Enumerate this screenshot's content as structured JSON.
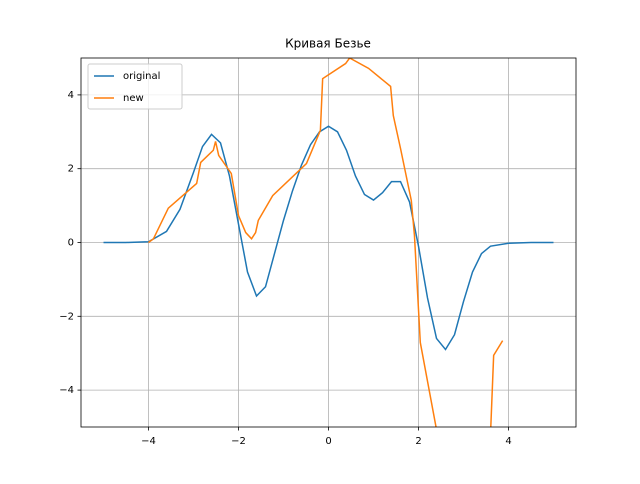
{
  "chart_data": {
    "type": "line",
    "title": "Кривая Безье",
    "series": [
      {
        "name": "original",
        "color": "#1f77b4",
        "x": [
          -5,
          -4.5,
          -4,
          -3.6,
          -3.3,
          -3,
          -2.8,
          -2.6,
          -2.4,
          -2.2,
          -2,
          -1.8,
          -1.6,
          -1.4,
          -1.2,
          -1,
          -0.8,
          -0.6,
          -0.4,
          -0.2,
          0,
          0.2,
          0.4,
          0.6,
          0.8,
          1,
          1.2,
          1.4,
          1.6,
          1.8,
          2,
          2.2,
          2.4,
          2.6,
          2.8,
          3,
          3.2,
          3.4,
          3.6,
          4,
          4.5,
          5
        ],
        "values": [
          0,
          0,
          0.02,
          0.3,
          0.9,
          1.9,
          2.6,
          2.93,
          2.7,
          1.8,
          0.5,
          -0.8,
          -1.45,
          -1.2,
          -0.3,
          0.6,
          1.4,
          2.1,
          2.65,
          3,
          3.15,
          3,
          2.5,
          1.8,
          1.3,
          1.15,
          1.35,
          1.65,
          1.65,
          1.1,
          -0.1,
          -1.5,
          -2.6,
          -2.9,
          -2.5,
          -1.6,
          -0.8,
          -0.3,
          -0.1,
          -0.02,
          0,
          0
        ]
      },
      {
        "name": "new",
        "color": "#ff7f0e",
        "x": [
          -4,
          -3.89,
          -3.56,
          -2.93,
          -2.84,
          -2.56,
          -2.51,
          -2.44,
          -2.16,
          -2,
          -1.84,
          -1.71,
          -1.62,
          -1.56,
          -1.24,
          -0.49,
          -0.18,
          -0.13,
          0.38,
          0.47,
          0.89,
          1.38,
          1.44,
          1.6,
          1.84,
          1.91,
          2.04,
          2.42,
          null,
          3.6,
          3.67,
          3.87
        ],
        "values": [
          0,
          0.1,
          0.93,
          1.6,
          2.17,
          2.5,
          2.74,
          2.36,
          1.87,
          0.73,
          0.27,
          0.1,
          0.27,
          0.6,
          1.27,
          2.14,
          3.04,
          4.44,
          4.85,
          5,
          4.72,
          4.23,
          3.44,
          2.55,
          1.14,
          0.19,
          -2.71,
          -5.2,
          null,
          -5.2,
          -3.06,
          -2.66
        ]
      }
    ],
    "xlim": [
      -5.5,
      5.5
    ],
    "ylim": [
      -5,
      5
    ],
    "xticks": [
      {
        "value": -4,
        "label": "−4"
      },
      {
        "value": -2,
        "label": "−2"
      },
      0,
      2,
      4
    ],
    "yticks": [
      {
        "value": -4,
        "label": "−4"
      },
      {
        "value": -2,
        "label": "−2"
      },
      0,
      2,
      4
    ],
    "grid": true,
    "legend": "upper left"
  }
}
